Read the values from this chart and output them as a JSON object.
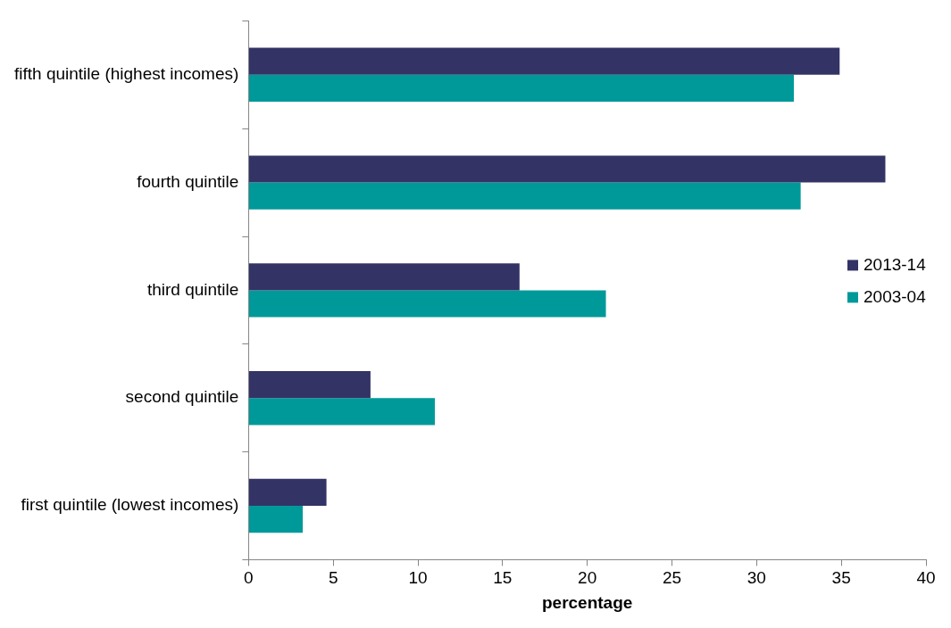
{
  "chart_data": {
    "type": "bar",
    "orientation": "horizontal",
    "xlabel": "percentage",
    "categories": [
      "fifth quintile (highest incomes)",
      "fourth quintile",
      "third quintile",
      "second quintile",
      "first quintile (lowest incomes)"
    ],
    "series": [
      {
        "name": "2013-14",
        "color": "#333366",
        "values": [
          34.9,
          37.6,
          16.0,
          7.2,
          4.6
        ]
      },
      {
        "name": "2003-04",
        "color": "#009999",
        "values": [
          32.2,
          32.6,
          21.1,
          11.0,
          3.2
        ]
      }
    ],
    "xlim": [
      0,
      40
    ],
    "xticks": [
      0,
      5,
      10,
      15,
      20,
      25,
      30,
      35,
      40
    ],
    "grid": false,
    "legend": "right"
  }
}
